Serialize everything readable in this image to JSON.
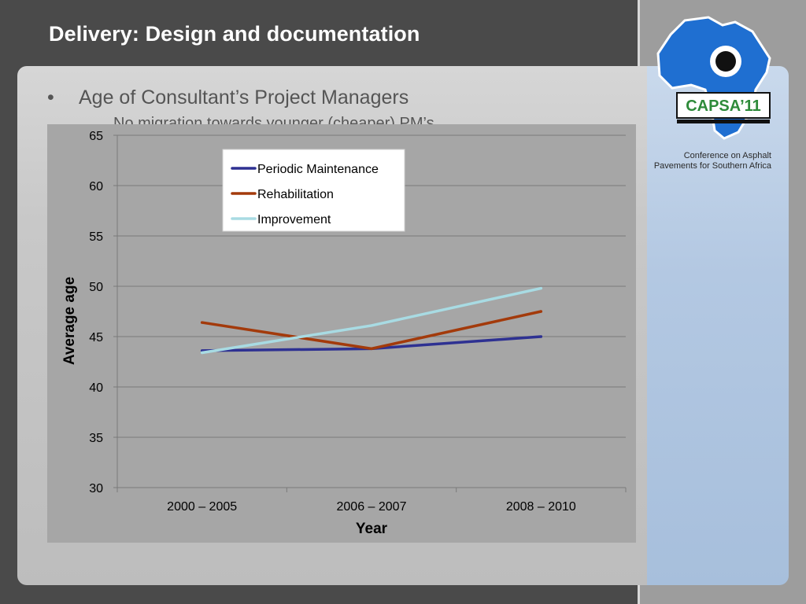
{
  "slide": {
    "title": "Delivery: Design and documentation",
    "bullet": "Age of Consultant’s Project Managers",
    "subbullet": "No migration towards younger (cheaper) PM’s"
  },
  "logo": {
    "text": "CAPSA’11",
    "caption_line1": "Conference on Asphalt",
    "caption_line2": "Pavements for Southern Africa"
  },
  "chart_data": {
    "type": "line",
    "categories": [
      "2000 – 2005",
      "2006 – 2007",
      "2008 – 2010"
    ],
    "series": [
      {
        "name": "Periodic Maintenance",
        "color": "#2e3192",
        "values": [
          43.6,
          43.8,
          45.0
        ]
      },
      {
        "name": "Rehabilitation",
        "color": "#a33a0b",
        "values": [
          46.4,
          43.8,
          47.5
        ]
      },
      {
        "name": "Improvement",
        "color": "#a8dbe3",
        "values": [
          43.4,
          46.1,
          49.8
        ]
      }
    ],
    "xlabel": "Year",
    "ylabel": "Average age",
    "ylim": [
      30,
      65
    ],
    "yticks": [
      30,
      35,
      40,
      45,
      50,
      55,
      60,
      65
    ],
    "grid": true,
    "legend": "top-center"
  }
}
